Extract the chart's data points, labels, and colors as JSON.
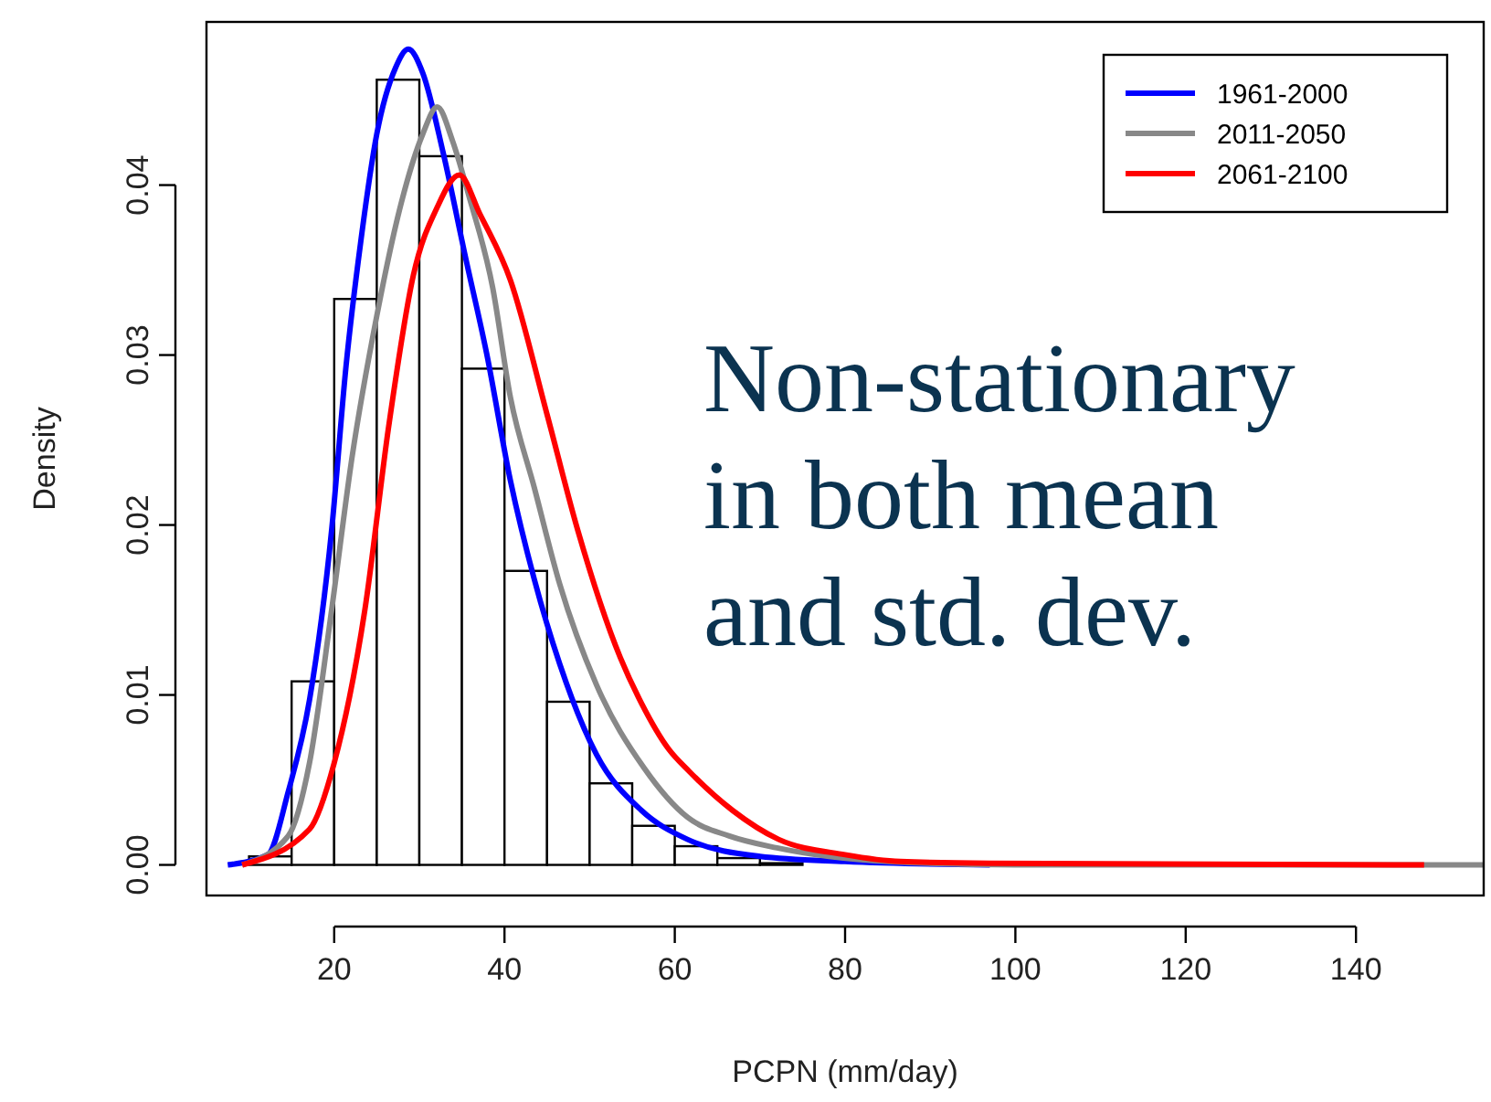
{
  "chart_data": {
    "type": "histogram",
    "xlabel": "PCPN (mm/day)",
    "ylabel": "Density",
    "color": "#ffffff",
    "bins": [
      10,
      15,
      20,
      25,
      30,
      35,
      40,
      45,
      50,
      55,
      60,
      65,
      70,
      75
    ],
    "values": [
      0.0005,
      0.0108,
      0.0333,
      0.0462,
      0.0417,
      0.0292,
      0.0173,
      0.0096,
      0.0048,
      0.0023,
      0.0011,
      0.0004,
      0.0001
    ],
    "series": [
      {
        "name": "1961-2000",
        "type": "line",
        "color": "#0000ff",
        "x": [
          7.5,
          12.2,
          14.6,
          17.1,
          19.7,
          21.4,
          23.1,
          25,
          27.2,
          28.7,
          30.4,
          32.8,
          35.4,
          37.9,
          40.7,
          43.5,
          46.5,
          50.8,
          56.1,
          61.5,
          70,
          80,
          97
        ],
        "values": [
          0,
          0.0006,
          0.0043,
          0.0097,
          0.0197,
          0.0294,
          0.0366,
          0.043,
          0.0469,
          0.048,
          0.0466,
          0.0419,
          0.0358,
          0.0301,
          0.0226,
          0.0168,
          0.0118,
          0.0065,
          0.0032,
          0.0015,
          0.0005,
          0.0002,
          0
        ]
      },
      {
        "name": "2011-2050",
        "type": "line",
        "color": "#888888",
        "x": [
          9.2,
          14.6,
          17.1,
          19.7,
          22.1,
          25,
          27.9,
          30.4,
          32.1,
          33.9,
          35.8,
          38.6,
          40.7,
          43.5,
          46.5,
          50.8,
          56.4,
          61.5,
          66.4,
          72,
          85,
          100,
          155
        ],
        "values": [
          0,
          0.0017,
          0.006,
          0.015,
          0.024,
          0.0323,
          0.039,
          0.043,
          0.0446,
          0.0426,
          0.0394,
          0.034,
          0.0275,
          0.0222,
          0.0165,
          0.0106,
          0.0057,
          0.0028,
          0.0017,
          0.001,
          0.0002,
          0,
          0
        ]
      },
      {
        "name": "2061-2100",
        "type": "line",
        "color": "#ff0000",
        "x": [
          9.2,
          17.1,
          20,
          23.6,
          26.4,
          29.3,
          32.1,
          34.7,
          37.1,
          40.7,
          45,
          48.6,
          53.6,
          56.1,
          59.3,
          61.7,
          66.8,
          72.2,
          80,
          86.5,
          97,
          148
        ],
        "values": [
          0,
          0.0021,
          0.006,
          0.015,
          0.0258,
          0.0347,
          0.0387,
          0.0406,
          0.0383,
          0.0344,
          0.0265,
          0.0197,
          0.0122,
          0.0095,
          0.0068,
          0.0055,
          0.0032,
          0.0015,
          0.0006,
          0.0002,
          0.0001,
          0
        ]
      }
    ],
    "xlim": [
      5,
      155
    ],
    "ylim": [
      -0.0018,
      0.0496
    ],
    "xticks": [
      20,
      40,
      60,
      80,
      100,
      120,
      140
    ],
    "yticks": [
      {
        "value": 0,
        "label": "0.00"
      },
      {
        "value": 0.01,
        "label": "0.01"
      },
      {
        "value": 0.02,
        "label": "0.02"
      },
      {
        "value": 0.03,
        "label": "0.03"
      },
      {
        "value": 0.04,
        "label": "0.04"
      }
    ],
    "legend": "top right",
    "grid": false,
    "annotations": [
      "Non-stationary in both mean and std. dev."
    ]
  }
}
